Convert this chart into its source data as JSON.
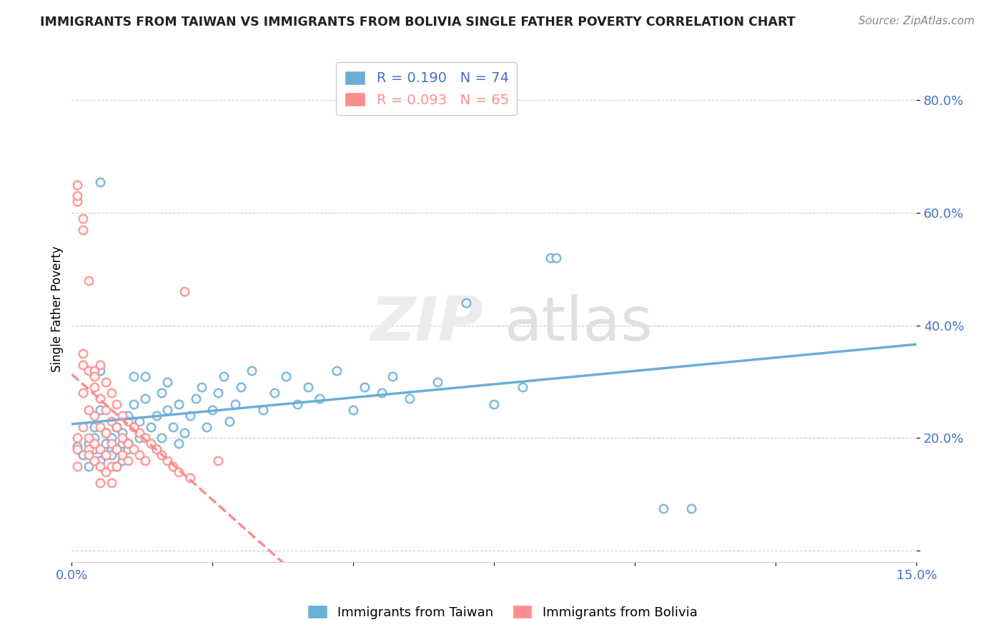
{
  "title": "IMMIGRANTS FROM TAIWAN VS IMMIGRANTS FROM BOLIVIA SINGLE FATHER POVERTY CORRELATION CHART",
  "source": "Source: ZipAtlas.com",
  "ylabel": "Single Father Poverty",
  "xlim": [
    0.0,
    0.15
  ],
  "ylim": [
    -0.02,
    0.88
  ],
  "y_ticks": [
    0.0,
    0.2,
    0.4,
    0.6,
    0.8
  ],
  "y_tick_labels": [
    "",
    "20.0%",
    "40.0%",
    "60.0%",
    "80.0%"
  ],
  "taiwan_color": "#6baed6",
  "bolivia_color": "#fc8d8d",
  "taiwan_line_color": "#4472c4",
  "bolivia_line_color": "#e05c5c",
  "taiwan_R": 0.19,
  "taiwan_N": 74,
  "bolivia_R": 0.093,
  "bolivia_N": 65,
  "tick_color": "#4472c4",
  "grid_color": "#cccccc",
  "taiwan_scatter": [
    [
      0.001,
      0.185
    ],
    [
      0.002,
      0.17
    ],
    [
      0.003,
      0.15
    ],
    [
      0.003,
      0.19
    ],
    [
      0.004,
      0.2
    ],
    [
      0.004,
      0.18
    ],
    [
      0.004,
      0.22
    ],
    [
      0.005,
      0.16
    ],
    [
      0.005,
      0.25
    ],
    [
      0.005,
      0.32
    ],
    [
      0.006,
      0.17
    ],
    [
      0.006,
      0.19
    ],
    [
      0.006,
      0.21
    ],
    [
      0.007,
      0.18
    ],
    [
      0.007,
      0.17
    ],
    [
      0.007,
      0.2
    ],
    [
      0.008,
      0.15
    ],
    [
      0.008,
      0.18
    ],
    [
      0.008,
      0.22
    ],
    [
      0.009,
      0.16
    ],
    [
      0.009,
      0.19
    ],
    [
      0.009,
      0.21
    ],
    [
      0.01,
      0.18
    ],
    [
      0.01,
      0.24
    ],
    [
      0.01,
      0.19
    ],
    [
      0.011,
      0.23
    ],
    [
      0.011,
      0.26
    ],
    [
      0.011,
      0.31
    ],
    [
      0.012,
      0.2
    ],
    [
      0.012,
      0.23
    ],
    [
      0.013,
      0.27
    ],
    [
      0.013,
      0.31
    ],
    [
      0.014,
      0.22
    ],
    [
      0.015,
      0.18
    ],
    [
      0.015,
      0.24
    ],
    [
      0.016,
      0.2
    ],
    [
      0.016,
      0.28
    ],
    [
      0.017,
      0.25
    ],
    [
      0.017,
      0.3
    ],
    [
      0.018,
      0.22
    ],
    [
      0.019,
      0.19
    ],
    [
      0.019,
      0.26
    ],
    [
      0.02,
      0.21
    ],
    [
      0.021,
      0.24
    ],
    [
      0.022,
      0.27
    ],
    [
      0.023,
      0.29
    ],
    [
      0.024,
      0.22
    ],
    [
      0.025,
      0.25
    ],
    [
      0.026,
      0.28
    ],
    [
      0.027,
      0.31
    ],
    [
      0.028,
      0.23
    ],
    [
      0.029,
      0.26
    ],
    [
      0.03,
      0.29
    ],
    [
      0.032,
      0.32
    ],
    [
      0.034,
      0.25
    ],
    [
      0.036,
      0.28
    ],
    [
      0.038,
      0.31
    ],
    [
      0.04,
      0.26
    ],
    [
      0.042,
      0.29
    ],
    [
      0.044,
      0.27
    ],
    [
      0.047,
      0.32
    ],
    [
      0.05,
      0.25
    ],
    [
      0.052,
      0.29
    ],
    [
      0.055,
      0.28
    ],
    [
      0.057,
      0.31
    ],
    [
      0.06,
      0.27
    ],
    [
      0.065,
      0.3
    ],
    [
      0.07,
      0.44
    ],
    [
      0.075,
      0.26
    ],
    [
      0.08,
      0.29
    ],
    [
      0.085,
      0.52
    ],
    [
      0.086,
      0.52
    ],
    [
      0.105,
      0.075
    ],
    [
      0.11,
      0.075
    ],
    [
      0.005,
      0.655
    ]
  ],
  "bolivia_scatter": [
    [
      0.001,
      0.18
    ],
    [
      0.001,
      0.2
    ],
    [
      0.001,
      0.15
    ],
    [
      0.002,
      0.35
    ],
    [
      0.002,
      0.33
    ],
    [
      0.002,
      0.28
    ],
    [
      0.002,
      0.22
    ],
    [
      0.003,
      0.18
    ],
    [
      0.003,
      0.32
    ],
    [
      0.003,
      0.25
    ],
    [
      0.003,
      0.2
    ],
    [
      0.003,
      0.17
    ],
    [
      0.004,
      0.32
    ],
    [
      0.004,
      0.29
    ],
    [
      0.004,
      0.24
    ],
    [
      0.004,
      0.19
    ],
    [
      0.004,
      0.16
    ],
    [
      0.004,
      0.31
    ],
    [
      0.005,
      0.33
    ],
    [
      0.005,
      0.27
    ],
    [
      0.005,
      0.22
    ],
    [
      0.005,
      0.18
    ],
    [
      0.005,
      0.15
    ],
    [
      0.005,
      0.12
    ],
    [
      0.006,
      0.3
    ],
    [
      0.006,
      0.25
    ],
    [
      0.006,
      0.21
    ],
    [
      0.006,
      0.17
    ],
    [
      0.006,
      0.14
    ],
    [
      0.007,
      0.28
    ],
    [
      0.007,
      0.23
    ],
    [
      0.007,
      0.19
    ],
    [
      0.007,
      0.15
    ],
    [
      0.007,
      0.12
    ],
    [
      0.008,
      0.26
    ],
    [
      0.008,
      0.22
    ],
    [
      0.008,
      0.18
    ],
    [
      0.008,
      0.15
    ],
    [
      0.009,
      0.24
    ],
    [
      0.009,
      0.2
    ],
    [
      0.009,
      0.17
    ],
    [
      0.01,
      0.23
    ],
    [
      0.01,
      0.19
    ],
    [
      0.01,
      0.16
    ],
    [
      0.011,
      0.22
    ],
    [
      0.011,
      0.18
    ],
    [
      0.012,
      0.21
    ],
    [
      0.012,
      0.17
    ],
    [
      0.013,
      0.2
    ],
    [
      0.013,
      0.16
    ],
    [
      0.014,
      0.19
    ],
    [
      0.015,
      0.18
    ],
    [
      0.016,
      0.17
    ],
    [
      0.017,
      0.16
    ],
    [
      0.018,
      0.15
    ],
    [
      0.019,
      0.14
    ],
    [
      0.021,
      0.13
    ],
    [
      0.026,
      0.16
    ],
    [
      0.02,
      0.46
    ],
    [
      0.001,
      0.62
    ],
    [
      0.001,
      0.65
    ],
    [
      0.001,
      0.63
    ],
    [
      0.002,
      0.57
    ],
    [
      0.002,
      0.59
    ],
    [
      0.003,
      0.48
    ]
  ]
}
